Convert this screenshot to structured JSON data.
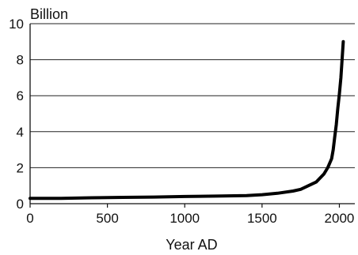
{
  "chart_data": {
    "type": "line",
    "title": "",
    "unit_label": "Billion",
    "xlabel": "Year AD",
    "ylabel": "",
    "xlim": [
      0,
      2100
    ],
    "ylim": [
      0,
      10
    ],
    "xticks": [
      0,
      500,
      1000,
      1500,
      2000
    ],
    "yticks": [
      0,
      2,
      4,
      6,
      8,
      10
    ],
    "grid": true,
    "series": [
      {
        "x": [
          0,
          200,
          400,
          600,
          800,
          1000,
          1200,
          1400,
          1500,
          1600,
          1700,
          1750,
          1800,
          1850,
          1900,
          1925,
          1950,
          1960,
          1970,
          1980,
          1990,
          2000,
          2010,
          2025
        ],
        "values": [
          0.3,
          0.3,
          0.33,
          0.35,
          0.37,
          0.4,
          0.42,
          0.45,
          0.5,
          0.58,
          0.7,
          0.8,
          1.0,
          1.2,
          1.65,
          2.0,
          2.5,
          3.0,
          3.7,
          4.4,
          5.3,
          6.1,
          7.0,
          9.0
        ]
      }
    ]
  }
}
